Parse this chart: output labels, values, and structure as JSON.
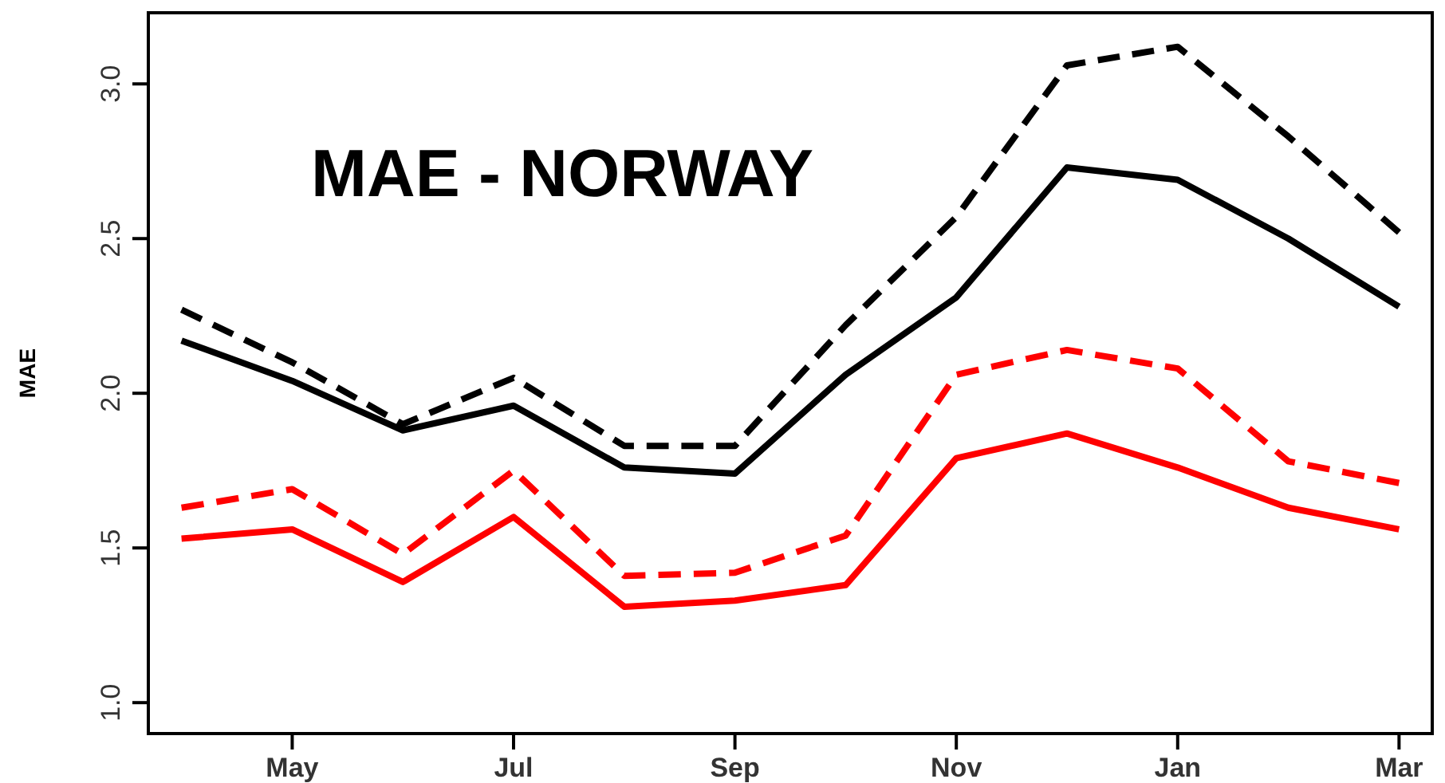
{
  "chart_data": {
    "type": "line",
    "title": "MAE - NORWAY",
    "ylabel": "MAE",
    "categories": [
      null,
      "May",
      null,
      "Jul",
      null,
      "Sep",
      null,
      "Nov",
      null,
      "Jan",
      null,
      "Mar"
    ],
    "series": [
      {
        "color": "#000000",
        "line_style": "solid",
        "values": [
          2.17,
          2.04,
          1.88,
          1.96,
          1.76,
          1.74,
          2.06,
          2.31,
          2.73,
          2.69,
          2.5,
          2.28
        ]
      },
      {
        "color": "#000000",
        "line_style": "dashed",
        "values": [
          2.27,
          2.1,
          1.9,
          2.05,
          1.83,
          1.83,
          2.22,
          2.57,
          3.06,
          3.12,
          2.83,
          2.52
        ]
      },
      {
        "color": "#ff0000",
        "line_style": "solid",
        "values": [
          1.53,
          1.56,
          1.39,
          1.6,
          1.31,
          1.33,
          1.38,
          1.79,
          1.87,
          1.76,
          1.63,
          1.56
        ]
      },
      {
        "color": "#ff0000",
        "line_style": "dashed",
        "values": [
          1.63,
          1.69,
          1.48,
          1.75,
          1.41,
          1.42,
          1.54,
          2.06,
          2.14,
          2.08,
          1.78,
          1.71
        ]
      }
    ],
    "ylim": [
      0.9,
      3.23
    ],
    "yticks": [
      {
        "value": 1,
        "label": "1.0"
      },
      1.5,
      {
        "value": 2,
        "label": "2.0"
      },
      2.5,
      {
        "value": 3,
        "label": "3.0"
      }
    ],
    "marker": "none"
  }
}
